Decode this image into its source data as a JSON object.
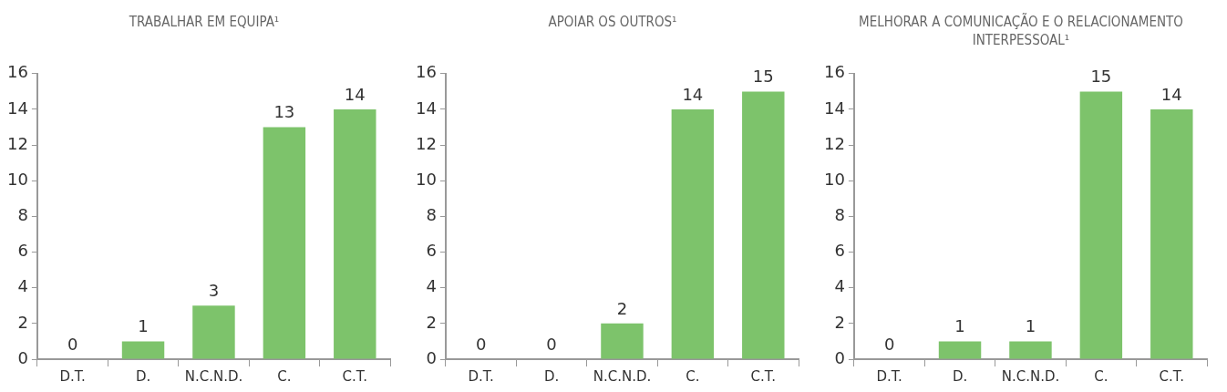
{
  "chart_data": [
    {
      "type": "bar",
      "title": "TRABALHAR EM EQUIPA¹",
      "categories": [
        "D.T.",
        "D.",
        "N.C.N.D.",
        "C.",
        "C.T."
      ],
      "values": [
        0,
        1,
        3,
        13,
        14
      ],
      "color": "#7dc36b",
      "ylim": [
        0,
        16
      ],
      "yticks": [
        0,
        2,
        4,
        6,
        8,
        10,
        12,
        14,
        16
      ],
      "grid": false,
      "legend": false,
      "data_labels": true
    },
    {
      "type": "bar",
      "title": "APOIAR OS OUTROS¹",
      "categories": [
        "D.T.",
        "D.",
        "N.C.N.D.",
        "C.",
        "C.T."
      ],
      "values": [
        0,
        0,
        2,
        14,
        15
      ],
      "color": "#7dc36b",
      "ylim": [
        0,
        16
      ],
      "yticks": [
        0,
        2,
        4,
        6,
        8,
        10,
        12,
        14,
        16
      ],
      "grid": false,
      "legend": false,
      "data_labels": true
    },
    {
      "type": "bar",
      "title": "MELHORAR A COMUNICAÇÃO E O RELACIONAMENTO INTERPESSOAL¹",
      "categories": [
        "D.T.",
        "D.",
        "N.C.N.D.",
        "C.",
        "C.T."
      ],
      "values": [
        0,
        1,
        1,
        15,
        14
      ],
      "color": "#7dc36b",
      "ylim": [
        0,
        16
      ],
      "yticks": [
        0,
        2,
        4,
        6,
        8,
        10,
        12,
        14,
        16
      ],
      "grid": false,
      "legend": false,
      "data_labels": true
    }
  ]
}
